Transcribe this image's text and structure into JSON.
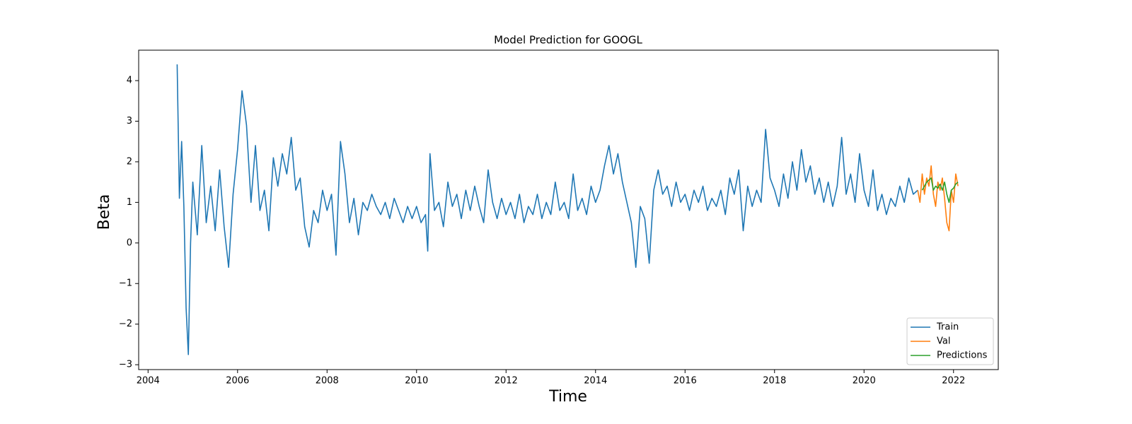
{
  "chart_data": {
    "type": "line",
    "title": "Model Prediction for GOOGL",
    "x_label": "Time",
    "y_label": "Beta",
    "xlim": [
      2003.79,
      2023.0
    ],
    "ylim": [
      -3.12,
      4.75
    ],
    "xticks": [
      2004,
      2006,
      2008,
      2010,
      2012,
      2014,
      2016,
      2018,
      2020,
      2022
    ],
    "yticks": [
      {
        "value": -3,
        "label": "−3"
      },
      {
        "value": -2,
        "label": "−2"
      },
      {
        "value": -1,
        "label": "−1"
      },
      0,
      1,
      2,
      3,
      4
    ],
    "legend": "lower right",
    "series": [
      {
        "name": "Train",
        "color": "#1f77b4",
        "x": [
          2004.65,
          2004.7,
          2004.75,
          2004.8,
          2004.85,
          2004.9,
          2004.95,
          2005.0,
          2005.1,
          2005.2,
          2005.3,
          2005.4,
          2005.5,
          2005.6,
          2005.7,
          2005.8,
          2005.9,
          2006.0,
          2006.1,
          2006.2,
          2006.3,
          2006.4,
          2006.5,
          2006.6,
          2006.7,
          2006.8,
          2006.9,
          2007.0,
          2007.1,
          2007.2,
          2007.3,
          2007.4,
          2007.5,
          2007.6,
          2007.7,
          2007.8,
          2007.9,
          2008.0,
          2008.1,
          2008.2,
          2008.3,
          2008.4,
          2008.5,
          2008.6,
          2008.7,
          2008.8,
          2008.9,
          2009.0,
          2009.1,
          2009.2,
          2009.3,
          2009.4,
          2009.5,
          2009.6,
          2009.7,
          2009.8,
          2009.9,
          2010.0,
          2010.1,
          2010.2,
          2010.25,
          2010.3,
          2010.4,
          2010.5,
          2010.6,
          2010.7,
          2010.8,
          2010.9,
          2011.0,
          2011.1,
          2011.2,
          2011.3,
          2011.4,
          2011.5,
          2011.6,
          2011.7,
          2011.8,
          2011.9,
          2012.0,
          2012.1,
          2012.2,
          2012.3,
          2012.4,
          2012.5,
          2012.6,
          2012.7,
          2012.8,
          2012.9,
          2013.0,
          2013.1,
          2013.2,
          2013.3,
          2013.4,
          2013.5,
          2013.6,
          2013.7,
          2013.8,
          2013.9,
          2014.0,
          2014.1,
          2014.2,
          2014.3,
          2014.4,
          2014.5,
          2014.6,
          2014.7,
          2014.8,
          2014.9,
          2015.0,
          2015.1,
          2015.2,
          2015.3,
          2015.4,
          2015.5,
          2015.6,
          2015.7,
          2015.8,
          2015.9,
          2016.0,
          2016.1,
          2016.2,
          2016.3,
          2016.4,
          2016.5,
          2016.6,
          2016.7,
          2016.8,
          2016.9,
          2017.0,
          2017.1,
          2017.2,
          2017.3,
          2017.4,
          2017.5,
          2017.6,
          2017.7,
          2017.8,
          2017.9,
          2018.0,
          2018.1,
          2018.2,
          2018.3,
          2018.4,
          2018.5,
          2018.6,
          2018.7,
          2018.8,
          2018.9,
          2019.0,
          2019.1,
          2019.2,
          2019.3,
          2019.4,
          2019.5,
          2019.6,
          2019.7,
          2019.8,
          2019.9,
          2020.0,
          2020.1,
          2020.2,
          2020.3,
          2020.4,
          2020.5,
          2020.6,
          2020.7,
          2020.8,
          2020.9,
          2021.0,
          2021.1,
          2021.2
        ],
        "values": [
          4.4,
          1.1,
          2.5,
          0.9,
          -1.6,
          -2.75,
          0.0,
          1.5,
          0.2,
          2.4,
          0.5,
          1.4,
          0.3,
          1.8,
          0.4,
          -0.6,
          1.2,
          2.3,
          3.75,
          2.9,
          1.0,
          2.4,
          0.8,
          1.3,
          0.3,
          2.1,
          1.4,
          2.2,
          1.7,
          2.6,
          1.3,
          1.6,
          0.4,
          -0.1,
          0.8,
          0.5,
          1.3,
          0.8,
          1.2,
          -0.3,
          2.5,
          1.7,
          0.5,
          1.1,
          0.2,
          1.0,
          0.8,
          1.2,
          0.9,
          0.7,
          1.0,
          0.6,
          1.1,
          0.8,
          0.5,
          0.9,
          0.6,
          0.9,
          0.5,
          0.7,
          -0.2,
          2.2,
          0.8,
          1.0,
          0.4,
          1.5,
          0.9,
          1.2,
          0.6,
          1.3,
          0.8,
          1.4,
          0.9,
          0.5,
          1.8,
          1.0,
          0.6,
          1.1,
          0.7,
          1.0,
          0.6,
          1.2,
          0.5,
          0.9,
          0.7,
          1.2,
          0.6,
          1.0,
          0.7,
          1.5,
          0.8,
          1.0,
          0.6,
          1.7,
          0.8,
          1.1,
          0.7,
          1.4,
          1.0,
          1.3,
          1.9,
          2.4,
          1.7,
          2.2,
          1.5,
          1.0,
          0.5,
          -0.6,
          0.9,
          0.6,
          -0.5,
          1.3,
          1.8,
          1.2,
          1.4,
          0.9,
          1.5,
          1.0,
          1.2,
          0.8,
          1.3,
          1.0,
          1.4,
          0.8,
          1.1,
          0.9,
          1.3,
          0.7,
          1.6,
          1.2,
          1.8,
          0.3,
          1.4,
          0.9,
          1.3,
          1.0,
          2.8,
          1.6,
          1.3,
          0.9,
          1.7,
          1.1,
          2.0,
          1.3,
          2.3,
          1.5,
          1.9,
          1.2,
          1.6,
          1.0,
          1.5,
          0.9,
          1.4,
          2.6,
          1.2,
          1.7,
          1.0,
          2.2,
          1.3,
          0.9,
          1.8,
          0.8,
          1.2,
          0.7,
          1.1,
          0.9,
          1.4,
          1.0,
          1.6,
          1.2,
          1.3
        ]
      },
      {
        "name": "Val",
        "color": "#ff7f0e",
        "x": [
          2021.2,
          2021.25,
          2021.3,
          2021.35,
          2021.4,
          2021.45,
          2021.5,
          2021.55,
          2021.6,
          2021.65,
          2021.7,
          2021.75,
          2021.8,
          2021.85,
          2021.9,
          2021.95,
          2022.0,
          2022.05,
          2022.1
        ],
        "values": [
          1.3,
          1.0,
          1.7,
          1.2,
          1.6,
          1.4,
          1.9,
          1.2,
          0.9,
          1.5,
          1.3,
          1.6,
          1.1,
          0.5,
          0.3,
          1.3,
          1.0,
          1.7,
          1.4
        ]
      },
      {
        "name": "Predictions",
        "color": "#2ca02c",
        "x": [
          2021.3,
          2021.35,
          2021.4,
          2021.45,
          2021.5,
          2021.55,
          2021.6,
          2021.65,
          2021.7,
          2021.75,
          2021.8,
          2021.85,
          2021.9,
          2021.95,
          2022.0,
          2022.05,
          2022.1
        ],
        "values": [
          1.3,
          1.4,
          1.5,
          1.55,
          1.6,
          1.3,
          1.4,
          1.35,
          1.45,
          1.3,
          1.5,
          1.2,
          1.0,
          1.3,
          1.35,
          1.45,
          1.5
        ]
      }
    ]
  }
}
